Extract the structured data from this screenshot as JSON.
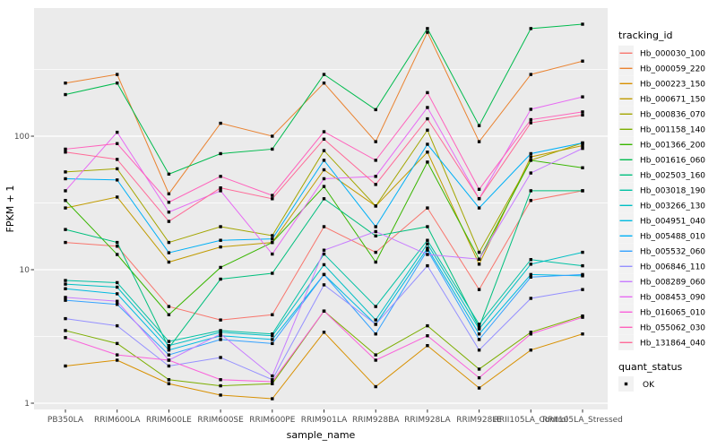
{
  "chart_data": {
    "type": "line",
    "title": "",
    "xlabel": "sample_name",
    "ylabel": "FPKM + 1",
    "yscale": "log10",
    "yticks": [
      1,
      10,
      100
    ],
    "ytick_labels": [
      "1",
      "10",
      "100"
    ],
    "minor_ticks": [
      3.1623,
      31.623,
      316.23
    ],
    "ylim": [
      0.9,
      900
    ],
    "grid": true,
    "legend_position": "right",
    "legend_title": "tracking_id",
    "quant_legend": {
      "title": "quant_status",
      "items": [
        {
          "label": "OK",
          "symbol": "black-square"
        }
      ]
    },
    "colors": {
      "panel_bg": "#EBEBEB",
      "grid": "#FFFFFF",
      "point": "#000000",
      "tick_text": "#4D4D4D",
      "axis_tick": "#333333",
      "legend_key_bg": "#F2F2F2",
      "page_bg": "#FFFFFF"
    },
    "categories": [
      "PB350LA",
      "RRIM600LA",
      "RRIM600LE",
      "RRIM600SE",
      "RRIM600PE",
      "RRIM901LA",
      "RRIM928BA",
      "RRIM928LA",
      "RRIM928LE",
      "RRII105LA_Control",
      "RRII105LA_Stressed"
    ],
    "series": [
      {
        "name": "Hb_000030_100",
        "color": "#F8766D",
        "values": [
          16,
          15,
          5.3,
          4.2,
          4.6,
          21,
          13.5,
          29,
          7.1,
          33,
          39
        ]
      },
      {
        "name": "Hb_000059_220",
        "color": "#EA8331",
        "values": [
          250,
          290,
          37,
          125,
          100,
          250,
          91,
          600,
          91,
          290,
          365
        ]
      },
      {
        "name": "Hb_000223_150",
        "color": "#D89000",
        "values": [
          1.9,
          2.1,
          1.4,
          1.15,
          1.08,
          3.4,
          1.33,
          2.7,
          1.3,
          2.5,
          3.3
        ]
      },
      {
        "name": "Hb_000671_150",
        "color": "#C09B00",
        "values": [
          29,
          35,
          11.4,
          14.8,
          16,
          56,
          30,
          76,
          11,
          70,
          85
        ]
      },
      {
        "name": "Hb_000836_070",
        "color": "#A3A500",
        "values": [
          54,
          57,
          16,
          21,
          18,
          78,
          30,
          111,
          13.5,
          66,
          89
        ]
      },
      {
        "name": "Hb_001158_140",
        "color": "#7CAE00",
        "values": [
          3.5,
          2.8,
          1.5,
          1.35,
          1.4,
          4.9,
          2.3,
          3.8,
          1.8,
          3.4,
          4.5
        ]
      },
      {
        "name": "Hb_001366_200",
        "color": "#39B600",
        "values": [
          33,
          13,
          4.6,
          10.4,
          16,
          42,
          11.4,
          64,
          12,
          66,
          58
        ]
      },
      {
        "name": "Hb_001616_060",
        "color": "#00BB4E",
        "values": [
          205,
          250,
          52,
          74,
          80,
          290,
          158,
          640,
          120,
          640,
          690
        ]
      },
      {
        "name": "Hb_002503_160",
        "color": "#00BF7D",
        "values": [
          20,
          16,
          2.6,
          8.5,
          9.4,
          34,
          17.9,
          21,
          3.7,
          39,
          39
        ]
      },
      {
        "name": "Hb_003018_190",
        "color": "#00C1A3",
        "values": [
          8.3,
          8.0,
          2.9,
          3.5,
          3.3,
          13.1,
          5.3,
          16.6,
          3.9,
          11.9,
          10.7
        ]
      },
      {
        "name": "Hb_003266_130",
        "color": "#00BFC4",
        "values": [
          7.8,
          7.4,
          2.7,
          3.4,
          3.2,
          10.9,
          4.2,
          15.6,
          3.6,
          11.0,
          13.5
        ]
      },
      {
        "name": "Hb_004951_040",
        "color": "#00BAE0",
        "values": [
          7.2,
          6.6,
          2.5,
          3.2,
          3.0,
          9.2,
          3.9,
          14.5,
          3.3,
          9.2,
          9.0
        ]
      },
      {
        "name": "Hb_005488_010",
        "color": "#00B0F6",
        "values": [
          48,
          47,
          13.4,
          16.6,
          17,
          66,
          21,
          87,
          29,
          74,
          89
        ]
      },
      {
        "name": "Hb_005532_060",
        "color": "#35A2FF",
        "values": [
          5.9,
          5.5,
          2.3,
          3.0,
          2.8,
          9.2,
          3.3,
          14,
          3.0,
          8.8,
          9.2
        ]
      },
      {
        "name": "Hb_006846_110",
        "color": "#9590FF",
        "values": [
          4.3,
          3.8,
          1.9,
          2.2,
          1.5,
          7.7,
          3.9,
          10.7,
          2.5,
          6.1,
          7.1
        ]
      },
      {
        "name": "Hb_008289_060",
        "color": "#C77CFF",
        "values": [
          6.2,
          5.8,
          2.1,
          3.3,
          1.6,
          14,
          19.3,
          13,
          12,
          53,
          81
        ]
      },
      {
        "name": "Hb_008453_090",
        "color": "#E76BF3",
        "values": [
          39,
          107,
          27,
          39,
          13.1,
          48,
          50,
          164,
          34,
          159,
          197
        ]
      },
      {
        "name": "Hb_016065_010",
        "color": "#FA62DB",
        "values": [
          3.1,
          2.3,
          2.1,
          1.5,
          1.45,
          4.9,
          2.1,
          3.2,
          1.55,
          3.3,
          4.4
        ]
      },
      {
        "name": "Hb_055062_030",
        "color": "#FF62BC",
        "values": [
          80,
          88,
          32,
          50,
          36,
          108,
          66,
          212,
          40,
          133,
          152
        ]
      },
      {
        "name": "Hb_131864_040",
        "color": "#FF6A98",
        "values": [
          76,
          67,
          23,
          41,
          34,
          95,
          43.5,
          135,
          34,
          126,
          144
        ]
      }
    ]
  }
}
